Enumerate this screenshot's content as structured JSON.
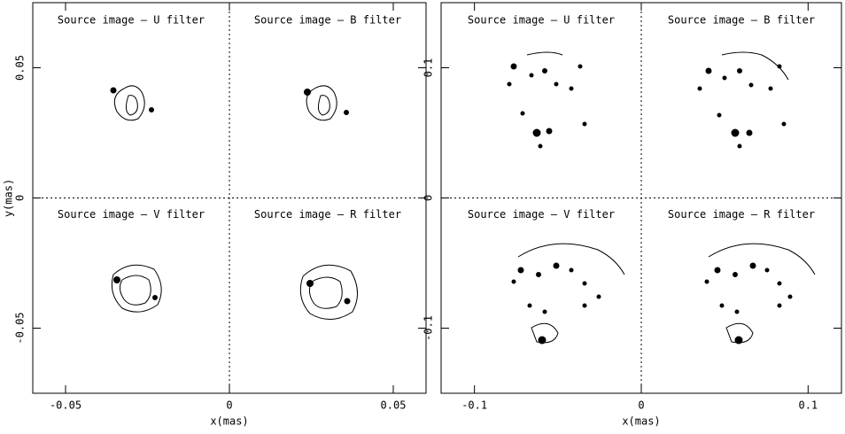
{
  "chart_data": [
    {
      "type": "contour",
      "xlabel": "x(mas)",
      "ylabel": "y(mas)",
      "xlim": [
        -0.06,
        0.06
      ],
      "ylim": [
        -0.075,
        0.075
      ],
      "xticks": [
        -0.05,
        0,
        0.05
      ],
      "yticks": [
        -0.05,
        0,
        0.05
      ],
      "panels": [
        "Source image – U filter",
        "Source image – B filter",
        "Source image – V filter",
        "Source image – R filter"
      ]
    },
    {
      "type": "contour",
      "xlabel": "x(mas)",
      "xlim": [
        -0.12,
        0.12
      ],
      "ylim": [
        -0.15,
        0.15
      ],
      "xticks": [
        -0.1,
        0,
        0.1
      ],
      "yticks": [
        -0.1,
        0,
        0.1
      ],
      "panels": [
        "Source image – U filter",
        "Source image – B filter",
        "Source image – V filter",
        "Source image – R filter"
      ]
    }
  ]
}
